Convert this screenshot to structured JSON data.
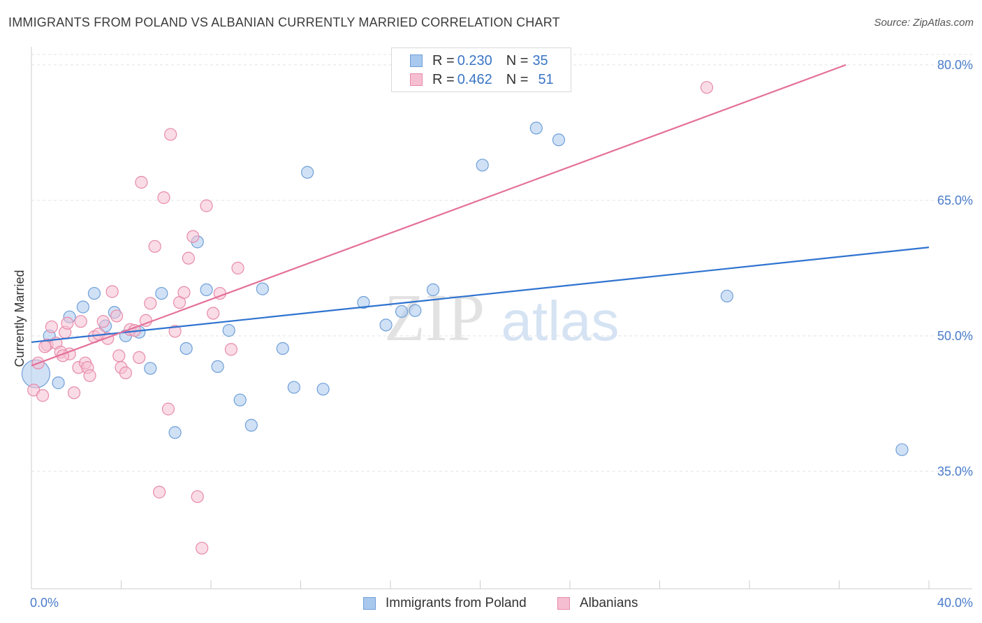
{
  "title": "IMMIGRANTS FROM POLAND VS ALBANIAN CURRENTLY MARRIED CORRELATION CHART",
  "source": "Source: ZipAtlas.com",
  "watermark": {
    "zip": "ZIP",
    "atlas": "atlas"
  },
  "legend": {
    "rows": [
      {
        "r_label": "R = ",
        "r_value": "0.230",
        "n_label": "N = ",
        "n_value": "35",
        "color": "#a9c8ee",
        "border": "#6f9fd8"
      },
      {
        "r_label": "R = ",
        "r_value": "0.462",
        "n_label": "N = ",
        "n_value": "51",
        "color": "#f6bfd1",
        "border": "#e78aa9"
      }
    ]
  },
  "chart_data": {
    "type": "scatter",
    "title": "IMMIGRANTS FROM POLAND VS ALBANIAN CURRENTLY MARRIED CORRELATION CHART",
    "xlabel": "",
    "ylabel": "Currently Married",
    "xlim": [
      0,
      40
    ],
    "ylim": [
      22,
      82
    ],
    "x_tick_labels": [
      "0.0%",
      "40.0%"
    ],
    "y_ticks": [
      35,
      50,
      65,
      80
    ],
    "y_tick_labels": [
      "35.0%",
      "50.0%",
      "65.0%",
      "80.0%"
    ],
    "grid": true,
    "legend_position": "top-center",
    "series": [
      {
        "name": "Immigrants from Poland",
        "color": "#a9c8ee",
        "edge": "#6f9fd8",
        "line_color": "#2f73d0",
        "trend": [
          [
            0,
            49.3
          ],
          [
            40,
            59.8
          ]
        ],
        "points": [
          [
            0.2,
            45.8
          ],
          [
            0.8,
            50.0
          ],
          [
            1.2,
            44.8
          ],
          [
            1.7,
            52.1
          ],
          [
            2.3,
            53.2
          ],
          [
            2.8,
            54.7
          ],
          [
            3.3,
            51.1
          ],
          [
            3.7,
            52.6
          ],
          [
            4.2,
            50.0
          ],
          [
            4.8,
            50.4
          ],
          [
            5.3,
            46.4
          ],
          [
            5.8,
            54.7
          ],
          [
            6.4,
            39.3
          ],
          [
            6.9,
            48.6
          ],
          [
            7.4,
            60.4
          ],
          [
            7.8,
            55.1
          ],
          [
            8.3,
            46.6
          ],
          [
            8.8,
            50.6
          ],
          [
            9.3,
            42.9
          ],
          [
            9.8,
            40.1
          ],
          [
            10.3,
            55.2
          ],
          [
            11.2,
            48.6
          ],
          [
            11.7,
            44.3
          ],
          [
            12.3,
            68.1
          ],
          [
            13.0,
            44.1
          ],
          [
            14.8,
            53.7
          ],
          [
            15.8,
            51.2
          ],
          [
            16.5,
            52.7
          ],
          [
            17.1,
            52.8
          ],
          [
            17.9,
            55.1
          ],
          [
            20.1,
            68.9
          ],
          [
            22.5,
            73.0
          ],
          [
            23.5,
            71.7
          ],
          [
            31.0,
            54.4
          ],
          [
            38.8,
            37.4
          ]
        ]
      },
      {
        "name": "Albanians",
        "color": "#f6bfd1",
        "edge": "#e78aa9",
        "line_color": "#e4709a",
        "trend": [
          [
            0,
            46.7
          ],
          [
            36.3,
            80.0
          ]
        ],
        "points": [
          [
            0.1,
            44.0
          ],
          [
            0.3,
            47.0
          ],
          [
            0.5,
            43.4
          ],
          [
            0.7,
            49.0
          ],
          [
            0.9,
            51.0
          ],
          [
            1.1,
            49.2
          ],
          [
            1.3,
            48.2
          ],
          [
            1.5,
            50.4
          ],
          [
            1.6,
            51.4
          ],
          [
            1.7,
            48.0
          ],
          [
            1.9,
            43.7
          ],
          [
            2.1,
            46.5
          ],
          [
            2.2,
            51.6
          ],
          [
            2.4,
            47.0
          ],
          [
            2.5,
            46.5
          ],
          [
            2.6,
            45.6
          ],
          [
            2.8,
            49.9
          ],
          [
            3.0,
            50.2
          ],
          [
            3.2,
            51.6
          ],
          [
            3.4,
            49.7
          ],
          [
            3.6,
            54.9
          ],
          [
            3.8,
            52.2
          ],
          [
            3.9,
            47.8
          ],
          [
            4.0,
            46.5
          ],
          [
            4.2,
            45.9
          ],
          [
            4.4,
            50.7
          ],
          [
            4.6,
            50.6
          ],
          [
            4.8,
            47.6
          ],
          [
            4.9,
            67.0
          ],
          [
            5.1,
            51.7
          ],
          [
            5.3,
            53.6
          ],
          [
            5.5,
            59.9
          ],
          [
            5.7,
            32.7
          ],
          [
            5.9,
            65.3
          ],
          [
            6.1,
            41.9
          ],
          [
            6.2,
            72.3
          ],
          [
            6.4,
            50.5
          ],
          [
            6.6,
            53.7
          ],
          [
            6.8,
            54.8
          ],
          [
            7.0,
            58.6
          ],
          [
            7.2,
            61.0
          ],
          [
            7.4,
            32.2
          ],
          [
            7.6,
            26.5
          ],
          [
            7.8,
            64.4
          ],
          [
            8.1,
            52.5
          ],
          [
            8.4,
            54.7
          ],
          [
            8.9,
            48.5
          ],
          [
            9.2,
            57.5
          ],
          [
            30.1,
            77.5
          ],
          [
            0.6,
            48.8
          ],
          [
            1.4,
            47.8
          ]
        ]
      }
    ]
  }
}
